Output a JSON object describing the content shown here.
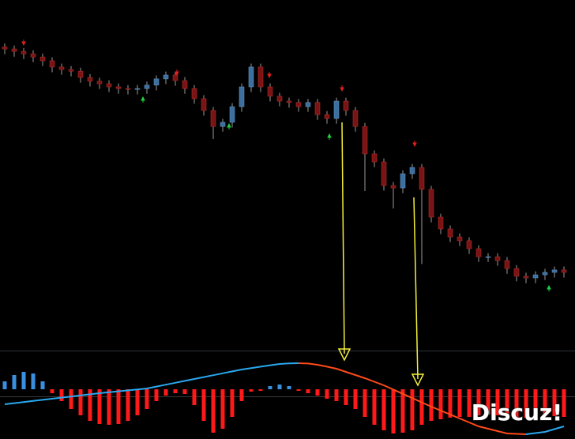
{
  "chart_data": {
    "type": "candlestick",
    "ylim": [
      0,
      100
    ],
    "up_color": "#3d6f9e",
    "down_color": "#7a1414",
    "open": [
      86.5,
      85.9,
      85.2,
      84.5,
      83.6,
      82.5,
      80.7,
      80.0,
      79.5,
      77.7,
      76.6,
      75.9,
      75.0,
      74.5,
      74.3,
      74.5,
      75.5,
      77.3,
      78.4,
      76.8,
      74.5,
      71.6,
      68.2,
      63.6,
      64.8,
      69.3,
      75.0,
      80.7,
      75.0,
      72.3,
      70.9,
      70.5,
      69.3,
      70.5,
      67.0,
      65.9,
      70.9,
      68.2,
      63.6,
      55.7,
      53.4,
      46.6,
      45.9,
      50.0,
      51.8,
      45.5,
      37.5,
      34.1,
      31.8,
      30.7,
      28.4,
      26.1,
      26.1,
      25.0,
      22.7,
      20.5,
      20.0,
      20.9,
      21.6,
      22.3
    ],
    "high": [
      87.5,
      86.9,
      86.2,
      85.5,
      84.6,
      83.5,
      81.7,
      81.0,
      80.5,
      78.7,
      77.6,
      76.9,
      76.0,
      75.5,
      75.5,
      76.5,
      78.3,
      79.4,
      79.4,
      77.8,
      75.5,
      72.6,
      69.2,
      65.8,
      70.3,
      76.0,
      81.7,
      81.7,
      76.0,
      73.3,
      71.9,
      71.5,
      71.5,
      71.5,
      68.0,
      71.9,
      71.9,
      69.2,
      64.6,
      56.7,
      54.4,
      47.6,
      51.0,
      52.8,
      52.8,
      46.5,
      38.5,
      35.1,
      32.8,
      31.7,
      29.4,
      27.1,
      27.1,
      26.0,
      23.7,
      21.5,
      21.9,
      22.6,
      23.3,
      23.3
    ],
    "low": [
      84.4,
      83.7,
      83.0,
      82.1,
      81.0,
      79.2,
      78.5,
      78.0,
      76.2,
      75.1,
      74.4,
      73.5,
      73.0,
      72.8,
      72.8,
      73.0,
      74.0,
      75.8,
      75.3,
      73.0,
      70.1,
      66.7,
      60.0,
      62.1,
      63.3,
      67.8,
      73.5,
      73.5,
      70.8,
      69.4,
      69.0,
      67.8,
      67.8,
      65.5,
      64.4,
      64.4,
      66.7,
      62.1,
      45.0,
      51.9,
      45.1,
      40.0,
      44.4,
      48.5,
      24.0,
      36.0,
      32.6,
      30.3,
      29.2,
      26.9,
      24.6,
      24.6,
      23.5,
      21.2,
      19.0,
      18.5,
      18.5,
      19.4,
      20.1,
      20.1
    ],
    "close": [
      85.9,
      85.2,
      84.5,
      83.6,
      82.5,
      80.7,
      80.0,
      79.5,
      77.7,
      76.6,
      75.9,
      75.0,
      74.5,
      74.3,
      74.5,
      75.5,
      77.3,
      78.4,
      76.8,
      74.5,
      71.6,
      68.2,
      63.6,
      64.8,
      69.3,
      75.0,
      80.7,
      75.0,
      72.3,
      70.9,
      70.5,
      69.3,
      70.5,
      67.0,
      65.9,
      70.9,
      68.2,
      63.6,
      55.7,
      53.4,
      46.6,
      45.9,
      50.0,
      51.8,
      45.5,
      37.5,
      34.1,
      31.8,
      30.7,
      28.4,
      26.1,
      26.1,
      25.0,
      22.7,
      20.5,
      20.0,
      20.9,
      21.6,
      22.3,
      21.6
    ],
    "indicator": {
      "ylim": [
        -63,
        47
      ],
      "hist_up_color": "#3a8fe0",
      "hist_down_color": "#ff1a1a",
      "line_up_color": "#2aa8ef",
      "line_down_color": "#ff4a1a",
      "hist": [
        10,
        18,
        22,
        20,
        10,
        -5,
        -15,
        -25,
        -33,
        -40,
        -44,
        -45,
        -44,
        -40,
        -33,
        -25,
        -15,
        -8,
        -5,
        -6,
        -20,
        -40,
        -55,
        -50,
        -35,
        -15,
        -3,
        -2,
        4,
        6,
        4,
        -2,
        -5,
        -8,
        -12,
        -15,
        -20,
        -25,
        -35,
        -45,
        -52,
        -56,
        -55,
        -52,
        -45,
        -40,
        -38,
        -36,
        -35,
        -35,
        -33,
        -32,
        -33,
        -35,
        -36,
        -36,
        -34,
        -33,
        -34,
        -35
      ],
      "signal": [
        -19,
        -17.6,
        -16.2,
        -14.8,
        -13.4,
        -12,
        -10.6,
        -9.2,
        -7.8,
        -6.4,
        -5,
        -3.8,
        -2.6,
        -1.4,
        -0.2,
        1,
        3.4,
        5.8,
        8.2,
        10.6,
        13,
        15.4,
        17.8,
        20.2,
        22.6,
        25,
        26.8,
        28.6,
        30.4,
        32,
        32.7,
        33,
        32.6,
        31,
        28.6,
        26,
        22,
        18,
        14,
        9.5,
        5,
        -0.4,
        -5.8,
        -11.2,
        -16.6,
        -22,
        -27,
        -32,
        -37,
        -42,
        -47,
        -50,
        -53,
        -56,
        -56.5,
        -57,
        -55.5,
        -54,
        -50.5,
        -47
      ]
    },
    "watermark": "Discuz!"
  }
}
